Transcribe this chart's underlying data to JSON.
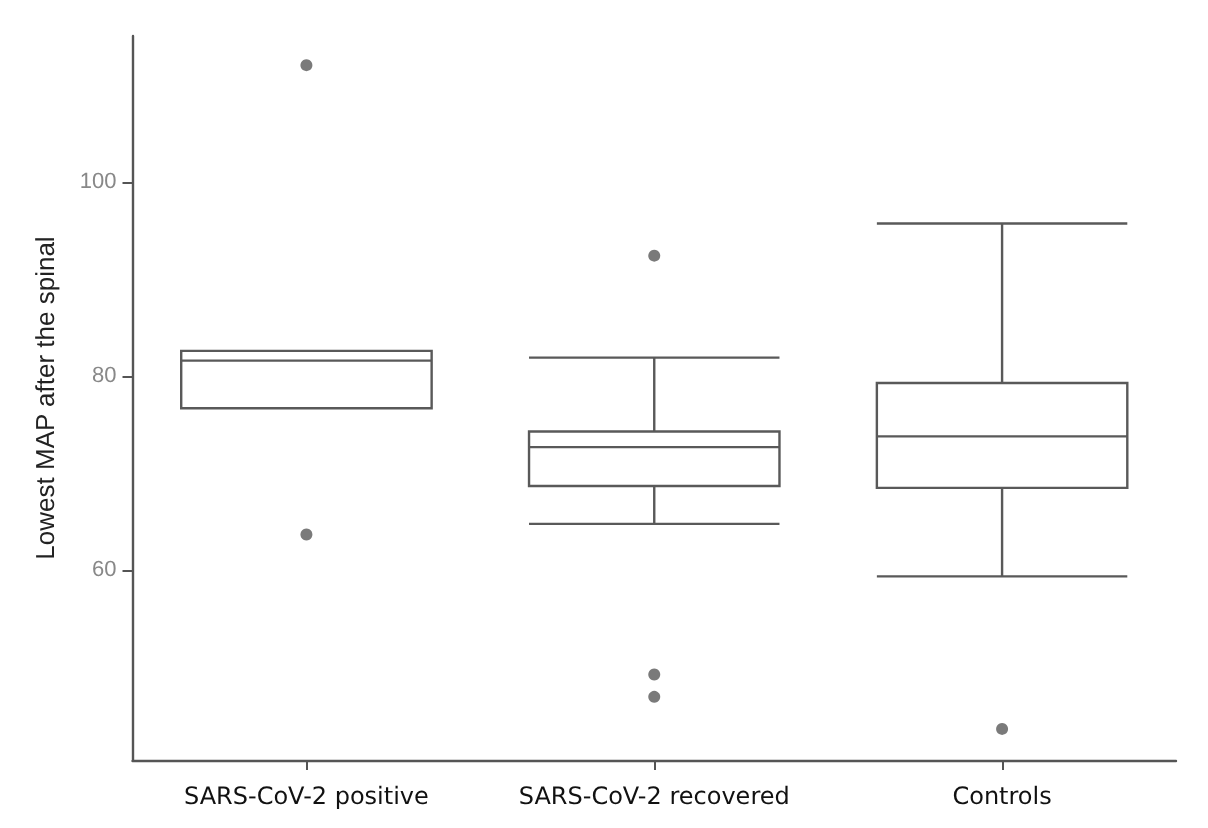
{
  "chart_data": {
    "type": "box",
    "ylabel": "Lowest MAP after the spinal",
    "categories": [
      "SARS-CoV-2 positive",
      "SARS-CoV-2 recovered",
      "Controls"
    ],
    "ylim": [
      40.5,
      115
    ],
    "yticks": [
      60,
      80,
      100
    ],
    "grid": false,
    "series": [
      {
        "color": "#595959",
        "boxes": [
          {
            "low": 76.7,
            "q1": 76.7,
            "median": 81.6,
            "q3": 82.6,
            "high": 82.6,
            "outliers": [
              112.0,
              63.7
            ]
          },
          {
            "low": 64.8,
            "q1": 68.7,
            "median": 72.7,
            "q3": 74.3,
            "high": 81.9,
            "outliers": [
              92.4,
              49.3,
              47.0
            ]
          },
          {
            "low": 59.4,
            "q1": 68.5,
            "median": 73.8,
            "q3": 79.3,
            "high": 95.7,
            "outliers": [
              43.7
            ]
          }
        ]
      }
    ]
  }
}
